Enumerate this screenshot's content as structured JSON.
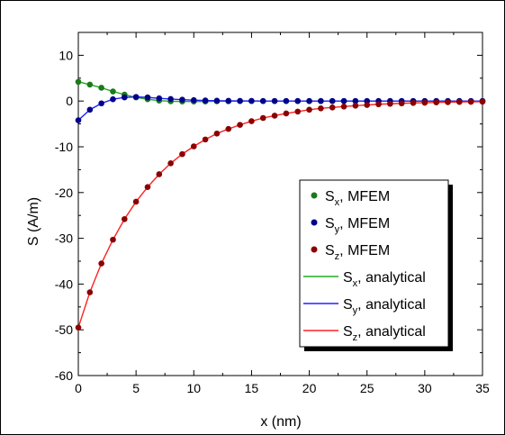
{
  "chart_data": {
    "type": "line",
    "xlabel": "x (nm)",
    "ylabel": "S (A/m)",
    "xlim": [
      0,
      35
    ],
    "ylim": [
      -60,
      15
    ],
    "x_ticks": [
      0,
      5,
      10,
      15,
      20,
      25,
      30,
      35
    ],
    "y_ticks": [
      10,
      0,
      -10,
      -20,
      -30,
      -40,
      -50,
      -60
    ],
    "grid": false,
    "legend_position": "right",
    "legend": [
      {
        "key": "sx_mfem",
        "label": "S",
        "sub": "x",
        "suffix": ", MFEM",
        "style": "marker",
        "color": "#1a7a1a"
      },
      {
        "key": "sy_mfem",
        "label": "S",
        "sub": "y",
        "suffix": ", MFEM",
        "style": "marker",
        "color": "#00008b"
      },
      {
        "key": "sz_mfem",
        "label": "S",
        "sub": "z",
        "suffix": ", MFEM",
        "style": "marker",
        "color": "#8b0000"
      },
      {
        "key": "sx_an",
        "label": "S",
        "sub": "x",
        "suffix": ", analytical",
        "style": "line",
        "color": "#22aa22"
      },
      {
        "key": "sy_an",
        "label": "S",
        "sub": "y",
        "suffix": ", analytical",
        "style": "line",
        "color": "#2020ff"
      },
      {
        "key": "sz_an",
        "label": "S",
        "sub": "z",
        "suffix": ", analytical",
        "style": "line",
        "color": "#ff2020"
      }
    ],
    "x": [
      0,
      1,
      2,
      3,
      4,
      5,
      6,
      7,
      8,
      9,
      10,
      11,
      12,
      13,
      14,
      15,
      16,
      17,
      18,
      19,
      20,
      21,
      22,
      23,
      24,
      25,
      26,
      27,
      28,
      29,
      30,
      31,
      32,
      33,
      34,
      35
    ],
    "series": [
      {
        "name": "Sx, MFEM",
        "style": "marker",
        "color": "#1a7a1a",
        "values": [
          4.2,
          3.6,
          2.9,
          2.1,
          1.4,
          0.8,
          0.4,
          0.1,
          -0.05,
          -0.1,
          -0.1,
          -0.1,
          -0.05,
          -0.05,
          0,
          0,
          0,
          0,
          0,
          0,
          0,
          0,
          0,
          0,
          0,
          0,
          0,
          0,
          0,
          0,
          0,
          0,
          0,
          0,
          0,
          0
        ]
      },
      {
        "name": "Sy, MFEM",
        "style": "marker",
        "color": "#00008b",
        "values": [
          -4.2,
          -1.9,
          -0.5,
          0.4,
          0.8,
          0.9,
          0.8,
          0.6,
          0.45,
          0.3,
          0.2,
          0.12,
          0.08,
          0.05,
          0.03,
          0.02,
          0,
          0,
          0,
          0,
          0,
          0,
          0,
          0,
          0,
          0,
          0,
          0,
          0,
          0,
          0,
          0,
          0,
          0,
          0,
          0
        ]
      },
      {
        "name": "Sz, MFEM",
        "style": "marker",
        "color": "#8b0000",
        "values": [
          -49.5,
          -41.8,
          -35.5,
          -30.3,
          -25.8,
          -22.0,
          -18.8,
          -16.0,
          -13.6,
          -11.6,
          -9.9,
          -8.4,
          -7.1,
          -6.1,
          -5.2,
          -4.4,
          -3.7,
          -3.2,
          -2.7,
          -2.3,
          -1.9,
          -1.6,
          -1.4,
          -1.2,
          -1.0,
          -0.85,
          -0.7,
          -0.6,
          -0.5,
          -0.42,
          -0.36,
          -0.3,
          -0.25,
          -0.2,
          -0.17,
          -0.14
        ]
      },
      {
        "name": "Sx, analytical",
        "style": "line",
        "color": "#22aa22",
        "values": [
          4.2,
          3.6,
          2.9,
          2.1,
          1.4,
          0.8,
          0.4,
          0.1,
          -0.05,
          -0.1,
          -0.1,
          -0.1,
          -0.05,
          -0.05,
          0,
          0,
          0,
          0,
          0,
          0,
          0,
          0,
          0,
          0,
          0,
          0,
          0,
          0,
          0,
          0,
          0,
          0,
          0,
          0,
          0,
          0
        ]
      },
      {
        "name": "Sy, analytical",
        "style": "line",
        "color": "#2020ff",
        "values": [
          -4.2,
          -1.9,
          -0.5,
          0.4,
          0.8,
          0.9,
          0.8,
          0.6,
          0.45,
          0.3,
          0.2,
          0.12,
          0.08,
          0.05,
          0.03,
          0.02,
          0,
          0,
          0,
          0,
          0,
          0,
          0,
          0,
          0,
          0,
          0,
          0,
          0,
          0,
          0,
          0,
          0,
          0,
          0,
          0
        ]
      },
      {
        "name": "Sz, analytical",
        "style": "line",
        "color": "#ff2020",
        "values": [
          -49.5,
          -41.8,
          -35.5,
          -30.3,
          -25.8,
          -22.0,
          -18.8,
          -16.0,
          -13.6,
          -11.6,
          -9.9,
          -8.4,
          -7.1,
          -6.1,
          -5.2,
          -4.4,
          -3.7,
          -3.2,
          -2.7,
          -2.3,
          -1.9,
          -1.6,
          -1.4,
          -1.2,
          -1.0,
          -0.85,
          -0.7,
          -0.6,
          -0.5,
          -0.42,
          -0.36,
          -0.3,
          -0.25,
          -0.2,
          -0.17,
          -0.14
        ]
      }
    ]
  }
}
